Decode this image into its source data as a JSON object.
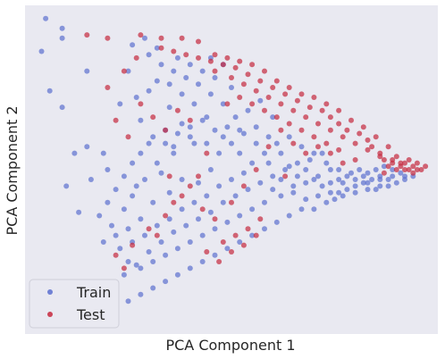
{
  "chart_data": {
    "type": "scatter",
    "xlabel": "PCA Component 1",
    "ylabel": "PCA Component 2",
    "xlim": [
      0,
      100
    ],
    "ylim": [
      0,
      100
    ],
    "x_ticks_visible": false,
    "y_ticks_visible": false,
    "grid": false,
    "background": "#e9e9f1",
    "legend_position": "lower-left",
    "series": [
      {
        "name": "Train",
        "color": "#5b6fcf",
        "points": [
          [
            5,
            96
          ],
          [
            9,
            93
          ],
          [
            4,
            86
          ],
          [
            9,
            90
          ],
          [
            15,
            80
          ],
          [
            9,
            69
          ],
          [
            6,
            74
          ],
          [
            15,
            57
          ],
          [
            10,
            45
          ],
          [
            12,
            55
          ],
          [
            13,
            37
          ],
          [
            16,
            47
          ],
          [
            20,
            50
          ],
          [
            19,
            55
          ],
          [
            23,
            70
          ],
          [
            25,
            80
          ],
          [
            27,
            72
          ],
          [
            30,
            74
          ],
          [
            32,
            77
          ],
          [
            35,
            69
          ],
          [
            28,
            65
          ],
          [
            30,
            58
          ],
          [
            34,
            62
          ],
          [
            38,
            64
          ],
          [
            41,
            58
          ],
          [
            36,
            55
          ],
          [
            33,
            49
          ],
          [
            29,
            47
          ],
          [
            26,
            42
          ],
          [
            31,
            40
          ],
          [
            35,
            43
          ],
          [
            38,
            47
          ],
          [
            42,
            46
          ],
          [
            45,
            50
          ],
          [
            47,
            55
          ],
          [
            50,
            58
          ],
          [
            53,
            61
          ],
          [
            56,
            63
          ],
          [
            59,
            60
          ],
          [
            62,
            55
          ],
          [
            64,
            51
          ],
          [
            66,
            48
          ],
          [
            68,
            46
          ],
          [
            70,
            47
          ],
          [
            72,
            45
          ],
          [
            74,
            46
          ],
          [
            76,
            47
          ],
          [
            78,
            48
          ],
          [
            80,
            45
          ],
          [
            82,
            46
          ],
          [
            84,
            47
          ],
          [
            86,
            48
          ],
          [
            88,
            47
          ],
          [
            90,
            46
          ],
          [
            92,
            48
          ],
          [
            78,
            44
          ],
          [
            76,
            43
          ],
          [
            75,
            41
          ],
          [
            73,
            40
          ],
          [
            70,
            38
          ],
          [
            67,
            38
          ],
          [
            64,
            36
          ],
          [
            61,
            34
          ],
          [
            58,
            32
          ],
          [
            55,
            30
          ],
          [
            52,
            28
          ],
          [
            49,
            26
          ],
          [
            46,
            24
          ],
          [
            43,
            22
          ],
          [
            40,
            20
          ],
          [
            37,
            18
          ],
          [
            34,
            16
          ],
          [
            31,
            14
          ],
          [
            28,
            12
          ],
          [
            25,
            10
          ],
          [
            22,
            14
          ],
          [
            24,
            18
          ],
          [
            27,
            21
          ],
          [
            30,
            25
          ],
          [
            33,
            28
          ],
          [
            36,
            31
          ],
          [
            39,
            33
          ],
          [
            42,
            35
          ],
          [
            45,
            37
          ],
          [
            48,
            40
          ],
          [
            51,
            42
          ],
          [
            54,
            44
          ],
          [
            57,
            46
          ],
          [
            60,
            48
          ],
          [
            63,
            50
          ],
          [
            66,
            52
          ],
          [
            69,
            53
          ],
          [
            72,
            55
          ],
          [
            46,
            62
          ],
          [
            44,
            66
          ],
          [
            41,
            70
          ],
          [
            38,
            73
          ],
          [
            35,
            76
          ],
          [
            48,
            70
          ],
          [
            51,
            66
          ],
          [
            54,
            68
          ],
          [
            57,
            71
          ],
          [
            60,
            66
          ],
          [
            50,
            75
          ],
          [
            46,
            78
          ],
          [
            43,
            80
          ],
          [
            40,
            82
          ],
          [
            37,
            84
          ],
          [
            45,
            73
          ],
          [
            49,
            63
          ],
          [
            52,
            55
          ],
          [
            55,
            52
          ],
          [
            58,
            55
          ],
          [
            61,
            58
          ],
          [
            64,
            60
          ],
          [
            67,
            57
          ],
          [
            70,
            55
          ],
          [
            73,
            52
          ],
          [
            76,
            50
          ],
          [
            79,
            49
          ],
          [
            81,
            50
          ],
          [
            83,
            49
          ],
          [
            85,
            50
          ],
          [
            87,
            51
          ],
          [
            89,
            50
          ],
          [
            91,
            49
          ],
          [
            28,
            35
          ],
          [
            25,
            32
          ],
          [
            22,
            30
          ],
          [
            19,
            28
          ],
          [
            26,
            28
          ],
          [
            29,
            30
          ],
          [
            32,
            33
          ],
          [
            35,
            35
          ],
          [
            38,
            38
          ],
          [
            41,
            40
          ],
          [
            44,
            42
          ],
          [
            47,
            45
          ],
          [
            50,
            47
          ],
          [
            53,
            49
          ],
          [
            20,
            40
          ],
          [
            22,
            44
          ],
          [
            24,
            48
          ],
          [
            26,
            52
          ],
          [
            28,
            55
          ],
          [
            31,
            60
          ],
          [
            34,
            58
          ],
          [
            37,
            61
          ],
          [
            40,
            63
          ],
          [
            43,
            65
          ],
          [
            30,
            85
          ],
          [
            33,
            82
          ],
          [
            36,
            80
          ],
          [
            39,
            78
          ],
          [
            42,
            76
          ],
          [
            45,
            84
          ],
          [
            48,
            82
          ],
          [
            26,
            88
          ],
          [
            29,
            90
          ],
          [
            32,
            87
          ],
          [
            60,
            44
          ],
          [
            62,
            42
          ],
          [
            65,
            43
          ],
          [
            68,
            41
          ],
          [
            71,
            42
          ],
          [
            74,
            43
          ],
          [
            77,
            42
          ],
          [
            80,
            43
          ],
          [
            83,
            44
          ],
          [
            86,
            45
          ],
          [
            58,
            40
          ],
          [
            55,
            38
          ],
          [
            52,
            36
          ],
          [
            49,
            34
          ],
          [
            46,
            32
          ],
          [
            43,
            30
          ],
          [
            40,
            28
          ],
          [
            37,
            26
          ],
          [
            34,
            24
          ],
          [
            31,
            22
          ],
          [
            28,
            20
          ],
          [
            25,
            22
          ],
          [
            23,
            26
          ],
          [
            21,
            33
          ],
          [
            18,
            36
          ],
          [
            24,
            38
          ],
          [
            27,
            45
          ],
          [
            32,
            52
          ],
          [
            36,
            57
          ],
          [
            40,
            60
          ],
          [
            44,
            58
          ],
          [
            48,
            60
          ],
          [
            52,
            62
          ],
          [
            56,
            58
          ],
          [
            59,
            52
          ],
          [
            62,
            47
          ],
          [
            65,
            45
          ],
          [
            68,
            50
          ],
          [
            71,
            48
          ],
          [
            74,
            50
          ],
          [
            77,
            46
          ],
          [
            80,
            47
          ],
          [
            83,
            46
          ],
          [
            86,
            47
          ],
          [
            89,
            48
          ],
          [
            92,
            47
          ],
          [
            94,
            48
          ],
          [
            88,
            45
          ],
          [
            85,
            44
          ],
          [
            82,
            48
          ]
        ]
      },
      {
        "name": "Test",
        "color": "#c5283d",
        "points": [
          [
            15,
            91
          ],
          [
            20,
            90
          ],
          [
            28,
            91
          ],
          [
            33,
            90
          ],
          [
            38,
            90
          ],
          [
            42,
            89
          ],
          [
            46,
            85
          ],
          [
            49,
            84
          ],
          [
            52,
            83
          ],
          [
            55,
            82
          ],
          [
            58,
            80
          ],
          [
            61,
            77
          ],
          [
            64,
            75
          ],
          [
            67,
            73
          ],
          [
            70,
            72
          ],
          [
            73,
            70
          ],
          [
            76,
            68
          ],
          [
            79,
            65
          ],
          [
            82,
            63
          ],
          [
            85,
            60
          ],
          [
            88,
            57
          ],
          [
            90,
            54
          ],
          [
            92,
            52
          ],
          [
            94,
            51
          ],
          [
            95,
            50
          ],
          [
            93,
            50
          ],
          [
            91,
            51
          ],
          [
            89,
            52
          ],
          [
            87,
            53
          ],
          [
            86,
            55
          ],
          [
            84,
            57
          ],
          [
            83,
            59
          ],
          [
            81,
            61
          ],
          [
            78,
            62
          ],
          [
            76,
            64
          ],
          [
            74,
            66
          ],
          [
            72,
            68
          ],
          [
            69,
            69
          ],
          [
            66,
            71
          ],
          [
            63,
            73
          ],
          [
            60,
            75
          ],
          [
            57,
            77
          ],
          [
            54,
            79
          ],
          [
            51,
            81
          ],
          [
            48,
            82
          ],
          [
            45,
            83
          ],
          [
            42,
            84
          ],
          [
            39,
            85
          ],
          [
            36,
            86
          ],
          [
            33,
            87
          ],
          [
            46,
            80
          ],
          [
            50,
            78
          ],
          [
            53,
            76
          ],
          [
            56,
            74
          ],
          [
            59,
            72
          ],
          [
            62,
            70
          ],
          [
            65,
            68
          ],
          [
            68,
            66
          ],
          [
            71,
            64
          ],
          [
            74,
            62
          ],
          [
            77,
            60
          ],
          [
            80,
            58
          ],
          [
            83,
            56
          ],
          [
            86,
            54
          ],
          [
            89,
            53
          ],
          [
            92,
            50
          ],
          [
            94,
            49
          ],
          [
            96,
            50
          ],
          [
            97,
            51
          ],
          [
            95,
            52
          ],
          [
            93,
            53
          ],
          [
            91,
            52
          ],
          [
            90,
            50
          ],
          [
            88,
            51
          ],
          [
            87,
            49
          ],
          [
            44,
            55
          ],
          [
            42,
            48
          ],
          [
            40,
            45
          ],
          [
            38,
            42
          ],
          [
            36,
            40
          ],
          [
            34,
            36
          ],
          [
            32,
            30
          ],
          [
            48,
            28
          ],
          [
            51,
            30
          ],
          [
            54,
            32
          ],
          [
            57,
            35
          ],
          [
            46,
            35
          ],
          [
            43,
            38
          ],
          [
            50,
            40
          ],
          [
            53,
            45
          ],
          [
            56,
            50
          ],
          [
            59,
            57
          ],
          [
            62,
            62
          ],
          [
            65,
            58
          ],
          [
            68,
            55
          ],
          [
            71,
            57
          ],
          [
            74,
            55
          ],
          [
            77,
            52
          ],
          [
            80,
            53
          ],
          [
            63,
            48
          ],
          [
            40,
            65
          ],
          [
            37,
            68
          ],
          [
            34,
            62
          ],
          [
            31,
            66
          ],
          [
            28,
            70
          ],
          [
            25,
            60
          ],
          [
            22,
            65
          ],
          [
            20,
            75
          ],
          [
            24,
            80
          ],
          [
            27,
            84
          ],
          [
            49,
            70
          ],
          [
            52,
            72
          ],
          [
            55,
            70
          ],
          [
            58,
            68
          ],
          [
            61,
            66
          ],
          [
            64,
            64
          ],
          [
            67,
            62
          ],
          [
            70,
            60
          ],
          [
            73,
            58
          ],
          [
            76,
            56
          ],
          [
            44,
            25
          ],
          [
            47,
            22
          ],
          [
            50,
            25
          ],
          [
            53,
            27
          ],
          [
            56,
            30
          ],
          [
            24,
            20
          ],
          [
            22,
            24
          ],
          [
            26,
            27
          ],
          [
            30,
            32
          ],
          [
            35,
            48
          ]
        ]
      }
    ]
  },
  "legend": {
    "train_label": "Train",
    "test_label": "Test"
  }
}
